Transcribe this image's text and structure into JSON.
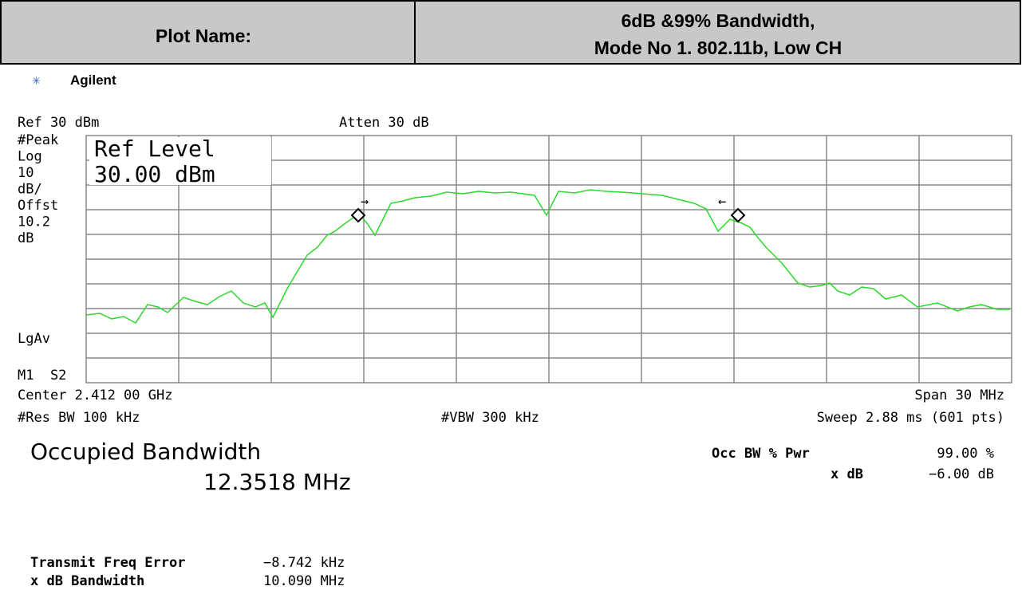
{
  "header": {
    "label": "Plot Name:",
    "title": [
      "6dB &99% Bandwidth,",
      "Mode No 1. 802.11b, Low CH"
    ]
  },
  "brand": "Agilent",
  "analyzer": {
    "ref": "Ref 30 dBm",
    "atten": "Atten 30 dB",
    "left_labels": [
      "#Peak",
      "Log",
      "10",
      "dB/",
      "Offst",
      "10.2",
      "dB"
    ],
    "lgav": "LgAv",
    "marker_mode": "M1  S2",
    "ref_level_box": [
      "Ref Level",
      "30.00 dBm"
    ],
    "center": "Center 2.412 00 GHz",
    "span": "Span 30 MHz",
    "res_bw": "#Res BW 100 kHz",
    "vbw": "#VBW 300 kHz",
    "sweep": "Sweep 2.88 ms (601 pts)"
  },
  "measurement": {
    "title": "Occupied Bandwidth",
    "value": "12.3518 MHz",
    "occ_label": "Occ BW % Pwr",
    "occ_value": "99.00 %",
    "xdb_label": "x dB",
    "xdb_value": "−6.00 dB",
    "freq_error_label": "Transmit Freq Error",
    "freq_error_value": "−8.742 kHz",
    "xdb_bw_label": "x dB Bandwidth",
    "xdb_bw_value": "10.090 MHz"
  }
}
